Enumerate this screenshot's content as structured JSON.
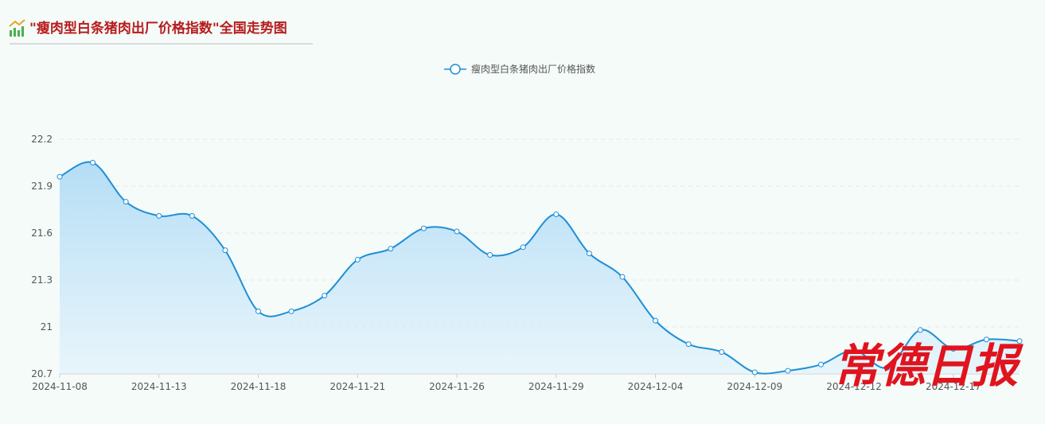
{
  "header": {
    "title": "\"瘦肉型白条猪肉出厂价格指数\"全国走势图"
  },
  "watermark": "常德日报",
  "chart_data": {
    "type": "line",
    "categories": [
      "2024-11-08",
      null,
      null,
      "2024-11-13",
      null,
      null,
      "2024-11-18",
      null,
      null,
      "2024-11-21",
      null,
      null,
      "2024-11-26",
      null,
      null,
      "2024-11-29",
      null,
      null,
      "2024-12-04",
      null,
      null,
      "2024-12-09",
      null,
      null,
      "2024-12-12",
      null,
      null,
      "2024-12-17",
      null,
      null
    ],
    "series": [
      {
        "name": "瘦肉型白条猪肉出厂价格指数",
        "color": "#1e8fd8",
        "values": [
          21.96,
          22.05,
          21.8,
          21.71,
          21.71,
          21.49,
          21.1,
          21.1,
          21.2,
          21.43,
          21.5,
          21.63,
          21.61,
          21.46,
          21.51,
          21.72,
          21.47,
          21.32,
          21.04,
          20.89,
          20.84,
          20.71,
          20.72,
          20.76,
          20.85,
          20.74,
          20.98,
          20.86,
          20.92,
          20.91
        ]
      }
    ],
    "ylim": [
      20.7,
      22.2
    ],
    "yticks": [
      20.7,
      21,
      21.3,
      21.6,
      21.9,
      22.2
    ],
    "grid": true,
    "legend": "top"
  }
}
